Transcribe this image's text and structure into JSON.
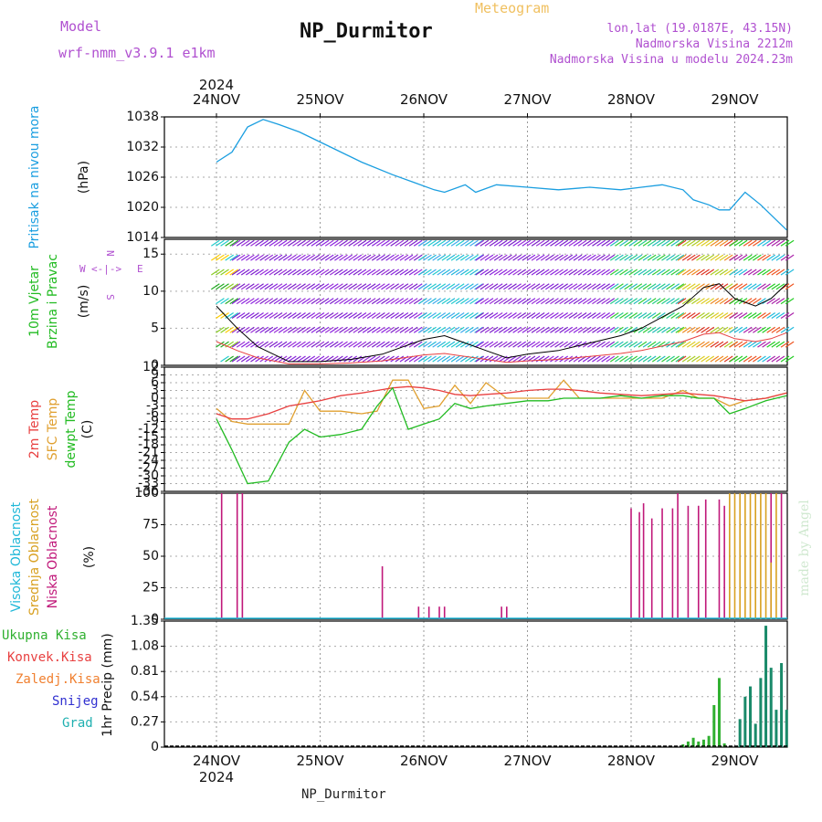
{
  "header": {
    "title": "NP_Durmitor",
    "subtitle": "Meteogram",
    "model_label": "Model",
    "model_value": "wrf-nmm_v3.9.1  e1km",
    "location_line1": "lon,lat (19.0187E, 43.15N)",
    "location_line2": "Nadmorska Visina 2212m",
    "location_line3": "Nadmorska Visina u modelu 2024.23m",
    "footer": "NP_Durmitor",
    "watermark": "made by Angel"
  },
  "colors": {
    "pressure": "#1a9ee0",
    "temp2m": "#e84040",
    "sfc_temp": "#e0a030",
    "dewpt": "#22bb22",
    "high_cloud": "#20b8d8",
    "mid_cloud": "#d8a020",
    "low_cloud": "#c0187a",
    "total_precip": "#30b030",
    "conv_precip": "#e84040",
    "freezing_precip": "#f08030",
    "snow": "#3030d0",
    "graupel": "#20b0b0",
    "wind_title": "#22bb22",
    "compass": "#b050d0"
  },
  "time_axis": {
    "year": "2024",
    "labels": [
      "24NOV",
      "25NOV",
      "26NOV",
      "27NOV",
      "28NOV",
      "29NOV"
    ]
  },
  "chart_data": [
    {
      "type": "line",
      "name": "pressure",
      "ylabel_title": "Pritisak na nivou mora",
      "ylabel_unit": "(hPa)",
      "yticks": [
        1014,
        1020,
        1026,
        1032,
        1038
      ],
      "ylim": [
        1014,
        1038
      ],
      "x_days": [
        0,
        0.15,
        0.3,
        0.45,
        0.6,
        0.8,
        1.1,
        1.4,
        1.7,
        1.9,
        2.1,
        2.2,
        2.4,
        2.5,
        2.7,
        3.0,
        3.3,
        3.6,
        3.9,
        4.1,
        4.3,
        4.5,
        4.6,
        4.75,
        4.85,
        4.95,
        5.1,
        5.25,
        5.4,
        5.5
      ],
      "series": [
        {
          "values": [
            1029,
            1031,
            1036,
            1037.5,
            1036.5,
            1035,
            1032,
            1029,
            1026.5,
            1025,
            1023.5,
            1023,
            1024.5,
            1023,
            1024.5,
            1024,
            1023.5,
            1024,
            1023.5,
            1024,
            1024.5,
            1023.5,
            1021.5,
            1020.5,
            1019.5,
            1019.5,
            1023,
            1020.5,
            1017.5,
            1015.5
          ]
        }
      ]
    },
    {
      "type": "line",
      "name": "wind",
      "ylabel_title": "10m Vjetar",
      "ylabel_title2": "Brzina i Pravac",
      "ylabel_unit": "(m/s)",
      "compass": {
        "n": "N",
        "s": "S",
        "e": "E",
        "w": "W",
        "arrows": "<-|->"
      },
      "yticks": [
        0,
        5,
        10,
        15
      ],
      "ylim": [
        0,
        17
      ],
      "x_days": [
        0,
        0.2,
        0.4,
        0.7,
        1.0,
        1.3,
        1.6,
        1.8,
        2.0,
        2.2,
        2.4,
        2.6,
        2.8,
        3.0,
        3.3,
        3.6,
        3.9,
        4.1,
        4.3,
        4.5,
        4.7,
        4.85,
        5.0,
        5.2,
        5.35,
        5.5
      ],
      "series": [
        {
          "name": "speed",
          "values": [
            8,
            5,
            2.5,
            0.5,
            0.5,
            0.8,
            1.5,
            2.5,
            3.5,
            4,
            3,
            2,
            1,
            1.5,
            2,
            3,
            4,
            5,
            6.5,
            8,
            10.5,
            11,
            9,
            8,
            9,
            11
          ]
        }
      ]
    },
    {
      "type": "line",
      "name": "temperature",
      "ylabel_title": "2m Temp",
      "ylabel_title2": "SFC Temp",
      "ylabel_title3": "dewpt Temp",
      "ylabel_unit": "(C)",
      "yticks": [
        -36,
        -33,
        -30,
        -27,
        -24,
        -21,
        -18,
        -15,
        -12,
        -9,
        -6,
        -3,
        0,
        3,
        6,
        9,
        12
      ],
      "ylim": [
        -36,
        12
      ],
      "x_days": [
        0,
        0.15,
        0.3,
        0.5,
        0.7,
        0.85,
        1.0,
        1.2,
        1.4,
        1.55,
        1.7,
        1.85,
        2.0,
        2.15,
        2.3,
        2.45,
        2.6,
        2.8,
        3.0,
        3.2,
        3.35,
        3.5,
        3.7,
        3.9,
        4.1,
        4.3,
        4.5,
        4.65,
        4.8,
        4.95,
        5.1,
        5.3,
        5.5
      ],
      "series": [
        {
          "name": "t2m",
          "values": [
            -6,
            -8,
            -8,
            -6,
            -3,
            -2,
            -1,
            1,
            2,
            3,
            4,
            4.5,
            4,
            3,
            1.5,
            1,
            1.5,
            2,
            3,
            3.5,
            3.5,
            3,
            2,
            1.5,
            1,
            1.5,
            2,
            1.5,
            1,
            0,
            -1,
            0,
            2
          ]
        },
        {
          "name": "tsfc",
          "values": [
            -4,
            -9,
            -10,
            -10,
            -10,
            3,
            -5,
            -5,
            -6,
            -5,
            7,
            7,
            -4,
            -3,
            5,
            -2,
            6,
            0,
            0,
            0,
            7,
            0,
            0,
            0,
            0,
            0,
            3,
            0,
            0,
            -3,
            -1,
            0,
            2
          ]
        },
        {
          "name": "dewpt",
          "values": [
            -8,
            -20,
            -33,
            -32,
            -17,
            -12,
            -15,
            -14,
            -12,
            -3,
            4,
            -12,
            -10,
            -8,
            -2,
            -4,
            -3,
            -2,
            -1,
            -1,
            0,
            0,
            0,
            1,
            0,
            1,
            1,
            0,
            0,
            -6,
            -4,
            -1,
            1
          ]
        }
      ]
    },
    {
      "type": "bar",
      "name": "cloud",
      "ylabel_title": "Visoka Oblacnost",
      "ylabel_title2": "Srednja Oblacnost",
      "ylabel_title3": "Niska Oblacnost",
      "ylabel_unit": "(%)",
      "yticks": [
        0,
        25,
        50,
        75,
        100
      ],
      "ylim": [
        0,
        100
      ],
      "series": [
        {
          "name": "low",
          "x_days": [
            0.05,
            0.2,
            0.25,
            1.6,
            1.95,
            2.05,
            2.15,
            2.2,
            2.75,
            2.8,
            4.0,
            4.08,
            4.12,
            4.2,
            4.3,
            4.4,
            4.45,
            4.55,
            4.65,
            4.72,
            4.85,
            4.9,
            5.35,
            5.45
          ],
          "values": [
            100,
            100,
            100,
            42,
            10,
            10,
            10,
            10,
            10,
            10,
            88,
            85,
            92,
            80,
            88,
            88,
            100,
            90,
            90,
            95,
            95,
            90,
            100,
            100
          ]
        },
        {
          "name": "mid",
          "x_days": [
            4.95,
            5.0,
            5.05,
            5.1,
            5.15,
            5.2,
            5.25,
            5.3,
            5.35,
            5.4
          ],
          "values": [
            100,
            100,
            100,
            100,
            100,
            100,
            100,
            100,
            45,
            100
          ]
        }
      ]
    },
    {
      "type": "bar",
      "name": "precip",
      "ylabel_title": "1hr Precip (mm)",
      "legend": [
        "Ukupna Kisa",
        "Konvek.Kisa",
        "Zaledj.Kisa",
        "Snijeg",
        "Grad"
      ],
      "yticks": [
        0,
        0.27,
        0.54,
        0.81,
        1.08,
        1.35
      ],
      "ylim": [
        0,
        1.35
      ],
      "series": [
        {
          "name": "total",
          "x_days": [
            4.5,
            4.55,
            4.6,
            4.65,
            4.7,
            4.75,
            4.8,
            4.85,
            4.9
          ],
          "values": [
            0.03,
            0.06,
            0.1,
            0.06,
            0.08,
            0.12,
            0.45,
            0.74,
            0.04
          ]
        },
        {
          "name": "graupel",
          "x_days": [
            5.05,
            5.1,
            5.15,
            5.2,
            5.25,
            5.3,
            5.35,
            5.4,
            5.45,
            5.5
          ],
          "values": [
            0.3,
            0.54,
            0.65,
            0.25,
            0.74,
            1.3,
            0.85,
            0.4,
            0.9,
            0.4
          ]
        }
      ]
    }
  ]
}
